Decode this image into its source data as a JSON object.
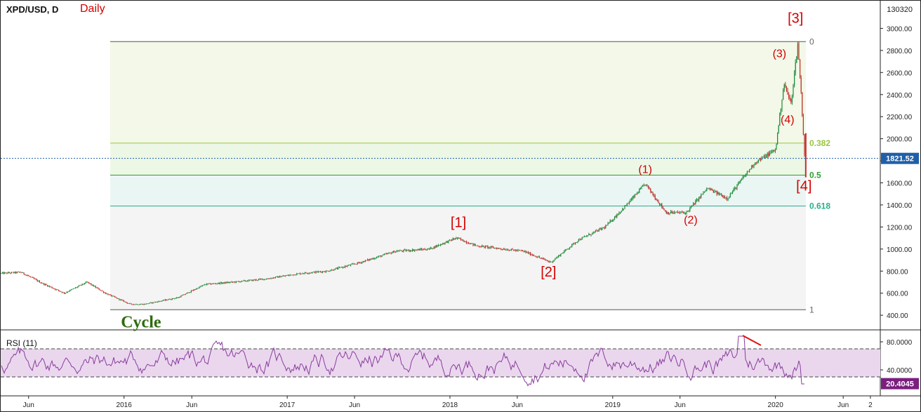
{
  "header": {
    "symbol": "XPD/USD, D",
    "timeframe": "Daily",
    "chart_id": "130320"
  },
  "colors": {
    "label_red": "#d40000",
    "cycle_green": "#2e6b0e",
    "fib_382": "#9bc53d",
    "fib_5": "#2e9e2e",
    "fib_618": "#26b08a",
    "rsi_line": "#8b3c9e",
    "rsi_band": "#ead7ee",
    "candle_up": "#1a8a3a",
    "candle_down": "#c0302a",
    "price_badge": "#1f5fa8",
    "rsi_badge": "#7b1f7f"
  },
  "chart_data": [
    {
      "type": "line",
      "title": "XPD/USD, D",
      "subtitle": "Daily",
      "price_axis_ticks": [
        "400.00",
        "600.00",
        "800.00",
        "1000.00",
        "1200.00",
        "1400.00",
        "1600.00",
        "1800.00",
        "2000.00",
        "2200.00",
        "2400.00",
        "2600.00",
        "2800.00",
        "3000.00"
      ],
      "time_axis_ticks": [
        "Jun",
        "2016",
        "Jun",
        "2017",
        "Jun",
        "2018",
        "Jun",
        "2019",
        "Jun",
        "2020",
        "Jun",
        "2"
      ],
      "ylim": [
        280,
        3130
      ],
      "current_price": "1821.52",
      "series": [
        {
          "x": [
            "2015-04-01",
            "2015-05-15",
            "2015-07-01",
            "2015-08-20",
            "2015-10-10",
            "2015-11-20",
            "2016-01-15",
            "2016-02-15",
            "2016-05-01",
            "2016-07-01",
            "2016-09-01",
            "2016-11-15",
            "2017-02-01",
            "2017-04-01",
            "2017-06-15",
            "2017-09-01",
            "2017-11-15",
            "2018-01-15",
            "2018-03-01",
            "2018-05-01",
            "2018-06-15",
            "2018-08-15",
            "2018-10-15",
            "2018-12-15",
            "2019-02-01",
            "2019-03-15",
            "2019-05-01",
            "2019-06-15",
            "2019-08-01",
            "2019-09-15",
            "2019-11-15",
            "2020-01-01",
            "2020-01-20",
            "2020-02-05",
            "2020-02-20",
            "2020-02-27",
            "2020-03-09"
          ],
          "values": [
            780,
            790,
            690,
            600,
            700,
            600,
            500,
            500,
            560,
            680,
            700,
            730,
            780,
            800,
            880,
            980,
            1000,
            1100,
            1030,
            1000,
            980,
            880,
            1080,
            1200,
            1400,
            1590,
            1330,
            1330,
            1550,
            1460,
            1780,
            1900,
            2500,
            2320,
            2860,
            2450,
            1650
          ]
        }
      ]
    },
    {
      "type": "line",
      "title": "RSI (11)",
      "axis_ticks": [
        "40.0000",
        "80.0000"
      ],
      "ylim": [
        5,
        95
      ],
      "overbought": 70,
      "oversold": 30,
      "current_value": "20.4045"
    }
  ],
  "fibonacci": {
    "levels": [
      {
        "label": "0",
        "price": 2880
      },
      {
        "label": "0.382",
        "price": 1960
      },
      {
        "label": "0.5",
        "price": 1670
      },
      {
        "label": "0.618",
        "price": 1390
      },
      {
        "label": "1",
        "price": 450
      }
    ]
  },
  "wave_labels": [
    {
      "text": "[1]",
      "date": "2018-01-20",
      "price": 1200
    },
    {
      "text": "[2]",
      "date": "2018-08-10",
      "price": 750
    },
    {
      "text": "(1)",
      "date": "2019-03-15",
      "price": 1690
    },
    {
      "text": "(2)",
      "date": "2019-06-25",
      "price": 1230
    },
    {
      "text": "(3)",
      "date": "2020-01-10",
      "price": 2740
    },
    {
      "text": "(4)",
      "date": "2020-01-28",
      "price": 2140
    },
    {
      "text": "[3]",
      "date": "2020-02-15",
      "price": 3050
    },
    {
      "text": "[4]",
      "date": "2020-03-05",
      "price": 1530
    },
    {
      "text": "Cycle",
      "date": "2015-12-25",
      "price": 290
    }
  ]
}
